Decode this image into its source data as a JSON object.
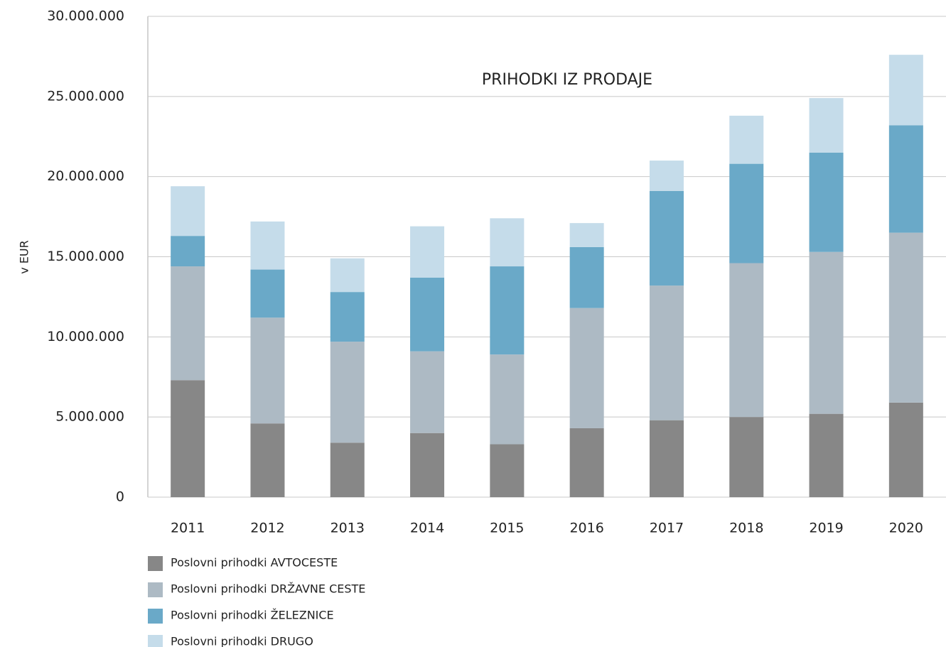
{
  "chart_data": {
    "type": "stacked_bar",
    "title": "PRIHODKI IZ PRODAJE",
    "y_label": "v EUR",
    "categories": [
      "2011",
      "2012",
      "2013",
      "2014",
      "2015",
      "2016",
      "2017",
      "2018",
      "2019",
      "2020"
    ],
    "series": [
      {
        "name": "Poslovni prihodki AVTOCESTE",
        "color": "#878787",
        "values": [
          7300000,
          4600000,
          3400000,
          4000000,
          3300000,
          4300000,
          4800000,
          5000000,
          5200000,
          5900000
        ]
      },
      {
        "name": "Poslovni prihodki DRŽAVNE CESTE",
        "color": "#adbac4",
        "values": [
          7100000,
          6600000,
          6300000,
          5100000,
          5600000,
          7500000,
          8400000,
          9600000,
          10100000,
          10600000
        ]
      },
      {
        "name": "Poslovni prihodki ŽELEZNICE",
        "color": "#6aa9c8",
        "values": [
          1900000,
          3000000,
          3100000,
          4600000,
          5500000,
          3800000,
          5900000,
          6200000,
          6200000,
          6700000
        ]
      },
      {
        "name": "Poslovni prihodki DRUGO",
        "color": "#c5dcea",
        "values": [
          3100000,
          3000000,
          2100000,
          3200000,
          3000000,
          1500000,
          1900000,
          3000000,
          3400000,
          4400000
        ]
      }
    ],
    "ylim": [
      0,
      30000000
    ],
    "yticks": [
      0,
      {
        "value": 5000000,
        "label": "5.000.000"
      },
      {
        "value": 10000000,
        "label": "10.000.000"
      },
      {
        "value": 15000000,
        "label": "15.000.000"
      },
      {
        "value": 20000000,
        "label": "20.000.000"
      },
      {
        "value": 25000000,
        "label": "25.000.000"
      },
      {
        "value": 30000000,
        "label": "30.000.000"
      }
    ],
    "grid": true
  }
}
